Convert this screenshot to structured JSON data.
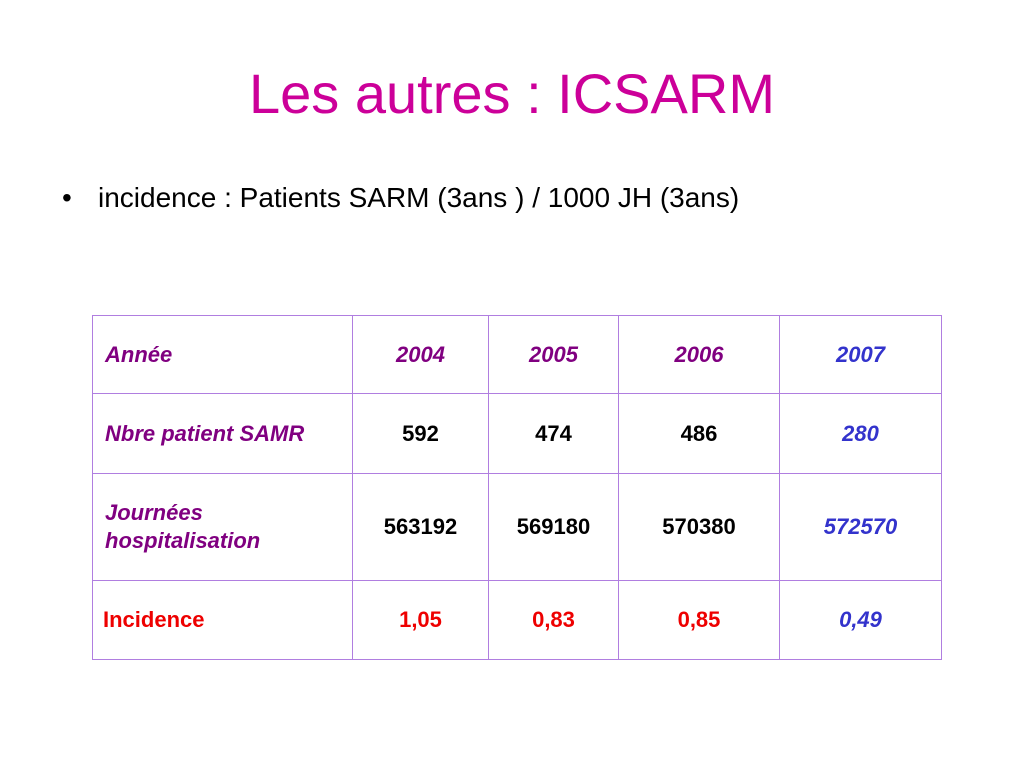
{
  "title": "Les autres : ICSARM",
  "bullet": {
    "marker": "•",
    "text": "incidence : Patients SARM  (3ans ) / 1000 JH (3ans)"
  },
  "table": {
    "header": {
      "label": "Année",
      "years": [
        "2004",
        "2005",
        "2006",
        "2007"
      ]
    },
    "rows": [
      {
        "label": "Nbre patient SAMR",
        "values": [
          "592",
          "474",
          "486",
          "280"
        ]
      },
      {
        "label": "Journées hospitalisation",
        "values": [
          "563192",
          "569180",
          "570380",
          "572570"
        ]
      },
      {
        "label": "Incidence",
        "values": [
          "1,05",
          "0,83",
          "0,85",
          "0,49"
        ]
      }
    ]
  },
  "colors": {
    "title": "#cc0099",
    "label": "#800080",
    "projected": "#3333cc",
    "incidence": "#ee0000",
    "border": "#b07ee0"
  }
}
